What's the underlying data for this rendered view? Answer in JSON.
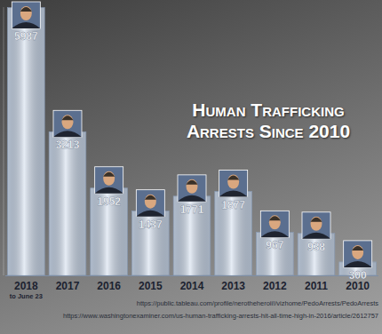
{
  "chart_data": {
    "type": "bar",
    "title": "Human Trafficking Arrests Since 2010",
    "categories": [
      "2018",
      "2017",
      "2016",
      "2015",
      "2014",
      "2013",
      "2012",
      "2011",
      "2010"
    ],
    "values": [
      5987,
      3213,
      1952,
      1437,
      1771,
      1877,
      967,
      938,
      300
    ],
    "color": "#c9d7ea",
    "ylim": [
      0,
      6000
    ],
    "data_labels": true,
    "tick_labels": "x",
    "grid": false,
    "annotations": [
      "to June 23",
      "https://public.tableau.com/profile/nerotheheroii!/vizhome/PedoArrests/PedoArrests",
      "https://www.washingtonexaminer.com/us-human-trafficking-arrests-hit-all-time-high-in-2016/article/2612757"
    ]
  }
}
